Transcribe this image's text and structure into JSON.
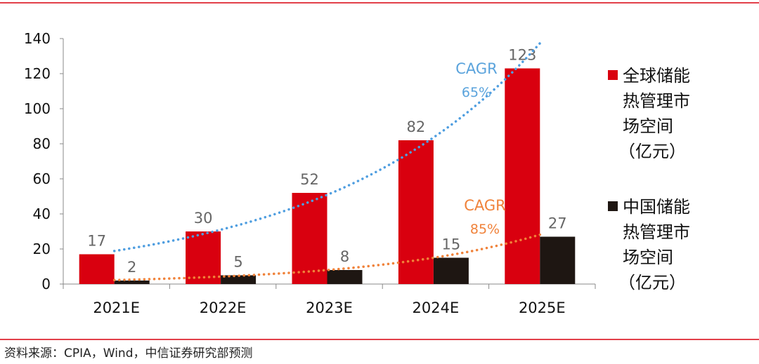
{
  "chart_data": {
    "type": "bar",
    "title": "",
    "xlabel": "",
    "ylabel": "",
    "ylim": [
      0,
      140
    ],
    "yticks": [
      0,
      20,
      40,
      60,
      80,
      100,
      120,
      140
    ],
    "grid": false,
    "legend_position": "right",
    "categories": [
      "2021E",
      "2022E",
      "2023E",
      "2024E",
      "2025E"
    ],
    "series": [
      {
        "name": "全球储能热管理市场空间（亿元）",
        "legend_lines": [
          "全球储能",
          "热管理市",
          "场空间",
          "（亿元）"
        ],
        "color": "#d9000f",
        "values": [
          17,
          30,
          52,
          82,
          123
        ],
        "labels": [
          "17",
          "30",
          "52",
          "82",
          "123"
        ],
        "trendline": {
          "type": "exponential",
          "style": "dotted",
          "color": "#4f9ee0"
        }
      },
      {
        "name": "中国储能热管理市场空间（亿元）",
        "legend_lines": [
          "中国储能",
          "热管理市",
          "场空间",
          "（亿元）"
        ],
        "color": "#1e1612",
        "values": [
          2,
          5,
          8,
          15,
          27
        ],
        "labels": [
          "2",
          "5",
          "8",
          "15",
          "27"
        ],
        "trendline": {
          "type": "exponential",
          "style": "dotted",
          "color": "#f0823a"
        }
      }
    ],
    "annotations": [
      {
        "lines": [
          "CAGR",
          "65%"
        ],
        "color": "#5aa3dc"
      },
      {
        "lines": [
          "CAGR",
          "85%"
        ],
        "color": "#f0823a"
      }
    ]
  },
  "source": "资料来源：CPIA，Wind，中信证券研究部预测",
  "colors": {
    "rule": "#d9000f",
    "label": "#666666"
  }
}
